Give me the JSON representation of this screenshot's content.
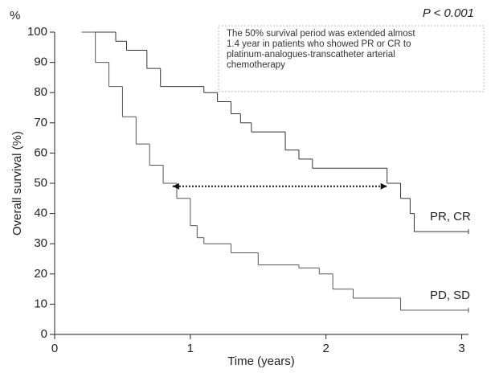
{
  "chart_data": {
    "type": "step",
    "title": "P < 0.001",
    "y_unit": "%",
    "xlabel": "Time (years)",
    "ylabel": "Overall survival (%)",
    "annotation": [
      "The 50% survival period was extended almost",
      "1.4 year in patients who showed PR or CR to",
      "platinum-analogues-transcatheter arterial",
      "chemotherapy"
    ],
    "arrow": {
      "x": [
        0.87,
        2.45
      ],
      "y": 49
    },
    "xlim": [
      0,
      3.05
    ],
    "xticks": [
      0,
      1,
      2,
      3
    ],
    "ylim": [
      0,
      100
    ],
    "yticks": [
      0,
      10,
      20,
      30,
      40,
      50,
      60,
      70,
      80,
      90,
      100
    ],
    "series": [
      {
        "name": "PR, CR",
        "color": "#333333",
        "x": [
          0.2,
          0.45,
          0.53,
          0.68,
          0.78,
          1.1,
          1.2,
          1.3,
          1.37,
          1.45,
          1.7,
          1.8,
          1.9,
          2.45,
          2.55,
          2.62,
          2.65,
          3.05
        ],
        "values": [
          100,
          97,
          94,
          88,
          82,
          80,
          77,
          73,
          70,
          67,
          61,
          58,
          55,
          50,
          45,
          40,
          34,
          34
        ]
      },
      {
        "name": "PD, SD",
        "color": "#555555",
        "x": [
          0.2,
          0.3,
          0.4,
          0.5,
          0.6,
          0.7,
          0.8,
          0.9,
          1.0,
          1.05,
          1.1,
          1.3,
          1.5,
          1.8,
          1.95,
          2.05,
          2.2,
          2.5,
          2.55,
          3.05
        ],
        "values": [
          100,
          90,
          82,
          72,
          63,
          56,
          50,
          45,
          36,
          32,
          30,
          27,
          23,
          22,
          20,
          15,
          12,
          12,
          8,
          8
        ]
      }
    ]
  }
}
